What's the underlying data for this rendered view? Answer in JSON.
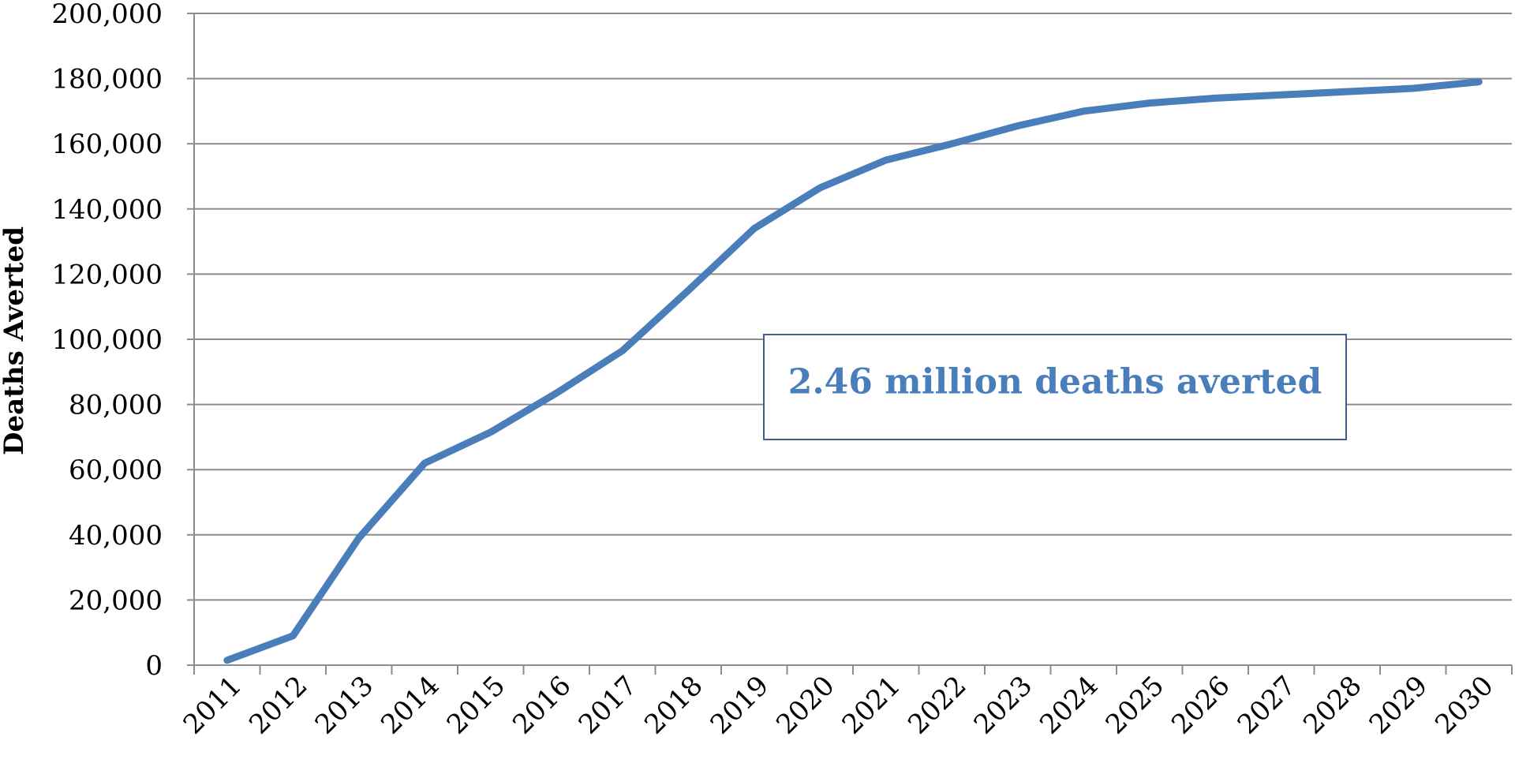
{
  "chart_data": {
    "type": "line",
    "ylabel": "Deaths Averted",
    "xlabel": "",
    "ylim": [
      0,
      200000
    ],
    "y_ticks": [
      0,
      20000,
      40000,
      60000,
      80000,
      100000,
      120000,
      140000,
      160000,
      180000,
      200000
    ],
    "y_tick_labels": [
      "0",
      "20,000",
      "40,000",
      "60,000",
      "80,000",
      "100,000",
      "120,000",
      "140,000",
      "160,000",
      "180,000",
      "200,000"
    ],
    "grid": "horizontal",
    "categories": [
      "2011",
      "2012",
      "2013",
      "2014",
      "2015",
      "2016",
      "2017",
      "2018",
      "2019",
      "2020",
      "2021",
      "2022",
      "2023",
      "2024",
      "2025",
      "2026",
      "2027",
      "2028",
      "2029",
      "2030"
    ],
    "series": [
      {
        "values": [
          1500,
          9000,
          39000,
          62000,
          71500,
          83500,
          96500,
          115000,
          134000,
          146500,
          155000,
          160000,
          165500,
          170000,
          172500,
          174000,
          175000,
          176000,
          177000,
          179000
        ],
        "color": "#4a7ebb"
      }
    ],
    "annotation": {
      "text": "2.46 million deaths averted",
      "color": "#4a7ebb",
      "border_color": "#3d5f8c"
    }
  }
}
